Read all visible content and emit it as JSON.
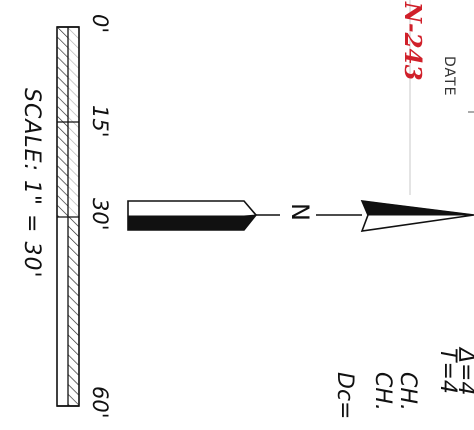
{
  "sheet_number": "N-243",
  "date_label": "DATE",
  "north_label": "N",
  "scale": {
    "label": "SCALE:  1\"  =  30'",
    "ticks": [
      "0'",
      "15'",
      "30'",
      "60'"
    ]
  },
  "curve_data": [
    "Δ=4",
    "T=4",
    "CH.",
    "CH.",
    "Dc="
  ],
  "colors": {
    "sheet_number": "#d0202a",
    "line": "#111111"
  }
}
